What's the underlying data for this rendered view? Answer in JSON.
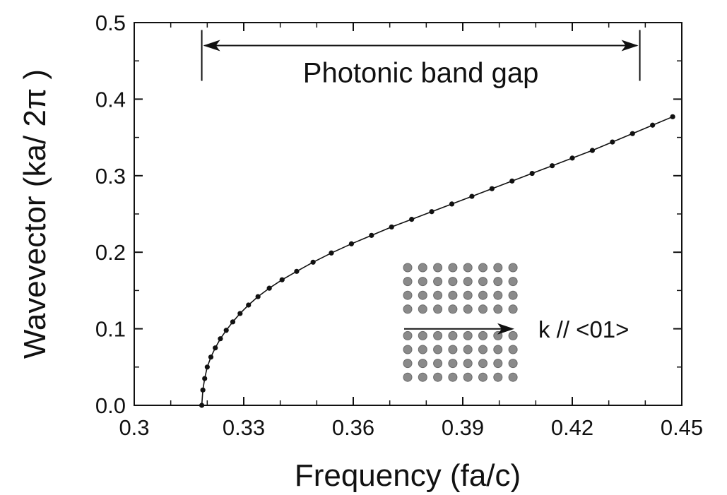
{
  "chart_data": {
    "type": "line",
    "xlabel": "Frequency (fa/c)",
    "ylabel": "Wavevector (ka/ 2π )",
    "xlim": [
      0.3,
      0.45
    ],
    "ylim": [
      0.0,
      0.5
    ],
    "x_ticks": [
      "0.3",
      "0.33",
      "0.36",
      "0.39",
      "0.42",
      "0.45"
    ],
    "y_ticks": [
      "0.0",
      "0.1",
      "0.2",
      "0.3",
      "0.4",
      "0.5"
    ],
    "grid": false,
    "series": [
      {
        "marker": "dot",
        "color": "#111111",
        "x": [
          0.3185,
          0.3188,
          0.3193,
          0.32,
          0.321,
          0.3222,
          0.3236,
          0.3252,
          0.327,
          0.329,
          0.3313,
          0.3339,
          0.337,
          0.3405,
          0.3445,
          0.349,
          0.354,
          0.3595,
          0.365,
          0.3705,
          0.376,
          0.3815,
          0.387,
          0.3925,
          0.398,
          0.4035,
          0.409,
          0.4145,
          0.42,
          0.4255,
          0.431,
          0.4365,
          0.442,
          0.4475
        ],
        "y": [
          0.0,
          0.02,
          0.035,
          0.05,
          0.063,
          0.075,
          0.087,
          0.098,
          0.109,
          0.12,
          0.131,
          0.142,
          0.153,
          0.164,
          0.175,
          0.187,
          0.199,
          0.211,
          0.222,
          0.233,
          0.243,
          0.253,
          0.263,
          0.273,
          0.283,
          0.293,
          0.303,
          0.313,
          0.323,
          0.333,
          0.344,
          0.355,
          0.366,
          0.377
        ]
      }
    ],
    "annotations": [
      {
        "text": "Photonic band gap",
        "x_start": 0.3185,
        "x_end": 0.4385,
        "y": 0.47
      }
    ],
    "inset": {
      "label": "k // <01>",
      "rows": 8,
      "cols": 8,
      "dot_color": "#8a8a8a",
      "arrow_row_after": 4
    }
  }
}
